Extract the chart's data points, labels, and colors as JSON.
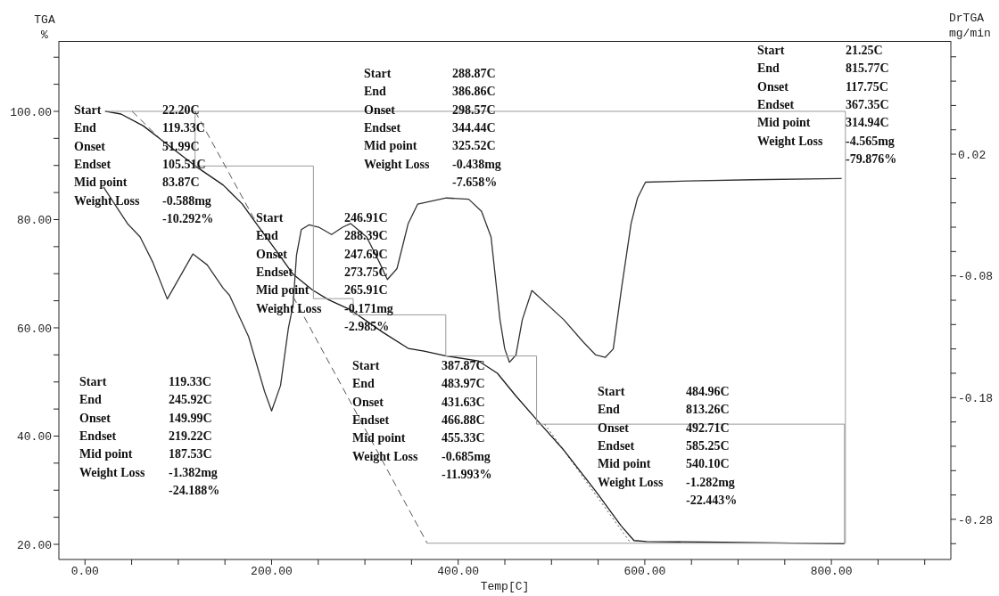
{
  "chart_data": {
    "type": "line",
    "xlabel": "Temp[C]",
    "ylabel": "TGA\n%",
    "y2label": "DrTGA\nmg/min",
    "marker": "none",
    "xlim": [
      -28,
      928
    ],
    "xticks": [
      {
        "value": 0,
        "label": "0.00"
      },
      {
        "value": 50,
        "label": null
      },
      {
        "value": 100,
        "label": null
      },
      {
        "value": 150,
        "label": null
      },
      {
        "value": 200,
        "label": "200.00"
      },
      {
        "value": 250,
        "label": null
      },
      {
        "value": 300,
        "label": null
      },
      {
        "value": 350,
        "label": null
      },
      {
        "value": 400,
        "label": "400.00"
      },
      {
        "value": 450,
        "label": null
      },
      {
        "value": 500,
        "label": null
      },
      {
        "value": 550,
        "label": null
      },
      {
        "value": 600,
        "label": "600.00"
      },
      {
        "value": 650,
        "label": null
      },
      {
        "value": 700,
        "label": null
      },
      {
        "value": 750,
        "label": null
      },
      {
        "value": 800,
        "label": "800.00"
      },
      {
        "value": 850,
        "label": null
      },
      {
        "value": 900,
        "label": null
      }
    ],
    "ylim": [
      17.2,
      113
    ],
    "yticks": [
      {
        "value": 20,
        "label": "20.00"
      },
      {
        "value": 25,
        "label": null
      },
      {
        "value": 30,
        "label": null
      },
      {
        "value": 35,
        "label": null
      },
      {
        "value": 40,
        "label": "40.00"
      },
      {
        "value": 45,
        "label": null
      },
      {
        "value": 50,
        "label": null
      },
      {
        "value": 55,
        "label": null
      },
      {
        "value": 60,
        "label": "60.00"
      },
      {
        "value": 65,
        "label": null
      },
      {
        "value": 70,
        "label": null
      },
      {
        "value": 75,
        "label": null
      },
      {
        "value": 80,
        "label": "80.00"
      },
      {
        "value": 85,
        "label": null
      },
      {
        "value": 90,
        "label": null
      },
      {
        "value": 95,
        "label": null
      },
      {
        "value": 100,
        "label": "100.00"
      },
      {
        "value": 105,
        "label": null
      },
      {
        "value": 110,
        "label": null
      }
    ],
    "y2lim": [
      -0.313,
      0.113
    ],
    "y2ticks": [
      {
        "value": -0.3,
        "label": null
      },
      -0.28,
      {
        "value": -0.26,
        "label": null
      },
      {
        "value": -0.24,
        "label": null
      },
      {
        "value": -0.22,
        "label": null
      },
      {
        "value": -0.2,
        "label": null
      },
      -0.18,
      {
        "value": -0.16,
        "label": null
      },
      {
        "value": -0.14,
        "label": null
      },
      {
        "value": -0.12,
        "label": null
      },
      {
        "value": -0.1,
        "label": null
      },
      -0.08,
      {
        "value": -0.06,
        "label": null
      },
      {
        "value": -0.04,
        "label": null
      },
      {
        "value": -0.02,
        "label": null
      },
      {
        "value": 0,
        "label": null
      },
      0.02,
      {
        "value": 0.04,
        "label": null
      },
      {
        "value": 0.06,
        "label": null
      },
      {
        "value": 0.08,
        "label": null
      },
      {
        "value": 0.1,
        "label": null
      }
    ],
    "series": [
      {
        "type": "line",
        "color": "#1a1a1a",
        "x": [
          21.5,
          38.6,
          62.6,
          86.5,
          120.7,
          148,
          168.5,
          185.6,
          206,
          223,
          243.8,
          260.9,
          284.8,
          319,
          346.4,
          363.4,
          387.3,
          421.5,
          442,
          461.9,
          485.8,
          513.2,
          547.4,
          574.7,
          588.4,
          602,
          684,
          814
        ],
        "values": [
          100,
          99.5,
          97.3,
          94.1,
          89.6,
          86.4,
          82.9,
          78.8,
          74,
          69.9,
          67,
          65.2,
          63.3,
          59.2,
          56.2,
          55.7,
          54.8,
          53.9,
          51.6,
          47.4,
          42.7,
          37.4,
          29.8,
          23.4,
          20.7,
          20.5,
          20.4,
          20.1
        ]
      },
      {
        "type": "line",
        "axis": "y2",
        "color": "#333333",
        "x": [
          19.8,
          30.1,
          45.5,
          59.1,
          72.8,
          88.2,
          115.6,
          131,
          148,
          154.9,
          175.4,
          192.5,
          200,
          209.6,
          218,
          223,
          226.7,
          231.8,
          240.3,
          250.6,
          264.3,
          276.2,
          284.8,
          301.9,
          315.6,
          324.1,
          334.4,
          346.4,
          356.6,
          387.3,
          411.3,
          425,
          435.2,
          444.8,
          449.9,
          455,
          461.9,
          468.7,
          479,
          513.2,
          533.7,
          547.4,
          557.6,
          566.2,
          575.1,
          585.3,
          592.2,
          600.7,
          646.9,
          715.2,
          811
        ],
        "values": [
          -0.007,
          -0.019,
          -0.037,
          -0.048,
          -0.069,
          -0.099,
          -0.062,
          -0.071,
          -0.09,
          -0.096,
          -0.13,
          -0.175,
          -0.191,
          -0.17,
          -0.123,
          -0.104,
          -0.063,
          -0.042,
          -0.038,
          -0.04,
          -0.046,
          -0.04,
          -0.037,
          -0.048,
          -0.069,
          -0.083,
          -0.074,
          -0.037,
          -0.021,
          -0.016,
          -0.017,
          -0.027,
          -0.048,
          -0.116,
          -0.14,
          -0.151,
          -0.145,
          -0.116,
          -0.092,
          -0.116,
          -0.134,
          -0.145,
          -0.147,
          -0.14,
          -0.09,
          -0.037,
          -0.016,
          -0.003,
          -0.002,
          -0.001,
          0
        ]
      },
      {
        "type": "line",
        "color": "#9a9a9a",
        "x": [
          22.2,
          815,
          815,
          366.8
        ],
        "values": [
          100,
          100,
          20.2,
          20.2
        ]
      },
      {
        "type": "line",
        "color": "#9a9a9a",
        "x": [
          118,
          118,
          244.8,
          244.8,
          287.5,
          287.5,
          386.7,
          386.7,
          484,
          484,
          814,
          814
        ],
        "values": [
          100,
          89.9,
          89.9,
          65.4,
          65.4,
          62.4,
          62.4,
          54.8,
          54.8,
          42.2,
          42.2,
          20.2
        ]
      },
      {
        "type": "line",
        "color": "#555555",
        "line_style": "dashed",
        "x": [
          50.6,
          86
        ],
        "values": [
          100,
          94
        ]
      },
      {
        "type": "line",
        "color": "#555555",
        "line_style": "dashed",
        "x": [
          118,
          185.6
        ],
        "values": [
          100,
          78.8
        ]
      },
      {
        "type": "line",
        "color": "#555555",
        "line_style": "dashed",
        "x": [
          223,
          366.8
        ],
        "values": [
          65.8,
          20.2
        ]
      },
      {
        "type": "line",
        "color": "#555555",
        "line_style": "dotted",
        "x": [
          492.7,
          585
        ],
        "values": [
          42.2,
          20.2
        ]
      }
    ],
    "annotations": [
      "Start\t22.20C\nEnd\t119.33C\nOnset\t51.99C\nEndset\t105.51C\nMid point\t83.87C\nWeight Loss\t-0.588mg\n\t-10.292%",
      "Start\t288.87C\nEnd\t386.86C\nOnset\t298.57C\nEndset\t344.44C\nMid point\t325.52C\nWeight Loss\t-0.438mg\n\t-7.658%",
      "Start\t21.25C\nEnd\t815.77C\nOnset\t117.75C\nEndset\t367.35C\nMid point\t314.94C\nWeight Loss\t-4.565mg\n\t-79.876%",
      "Start\t246.91C\nEnd\t288.39C\nOnset\t247.69C\nEndset\t273.75C\nMid point\t265.91C\nWeight Loss\t-0.171mg\n\t-2.985%",
      "Start\t119.33C\nEnd\t245.92C\nOnset\t149.99C\nEndset\t219.22C\nMid point\t187.53C\nWeight Loss\t-1.382mg\n\t-24.188%",
      "Start\t387.87C\nEnd\t483.97C\nOnset\t431.63C\nEndset\t466.88C\nMid point\t455.33C\nWeight Loss\t-0.685mg\n\t-11.993%",
      "Start\t484.96C\nEnd\t813.26C\nOnset\t492.71C\nEndset\t585.25C\nMid point\t540.10C\nWeight Loss\t-1.282mg\n\t-22.443%"
    ]
  }
}
